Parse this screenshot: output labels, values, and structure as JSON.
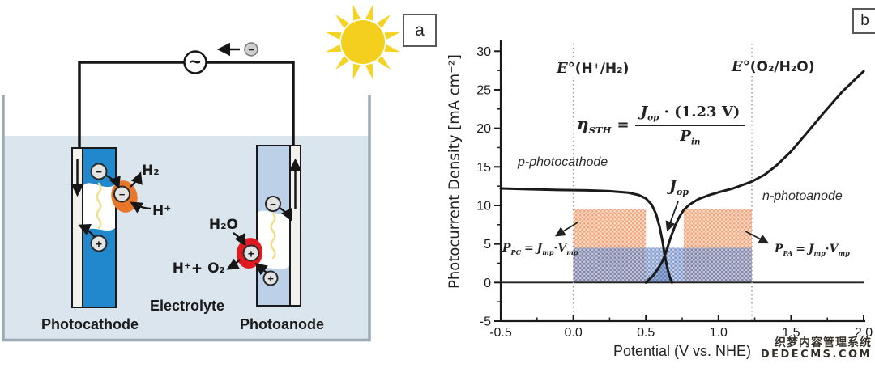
{
  "panel_a": {
    "tag": "a",
    "photocathode_label": "Photocathode",
    "photoanode_label": "Photoanode",
    "electrolyte_label": "Electrolyte",
    "h2": "H₂",
    "h_plus": "H⁺",
    "h2o": "H₂O",
    "h_plus_o2": "H⁺+ O₂",
    "ac_symbol": "~",
    "minus": "−",
    "plus": "+",
    "colors": {
      "electrolyte": "#dae5ee",
      "photocathode_blue": "#2189cb",
      "photoanode_blue": "#bcd0e8",
      "h2_catalyst_orange": "#e8772a",
      "o2_catalyst_red": "#e01a20",
      "sun_yellow": "#f5d322",
      "photon_yellow": "#efe08c"
    }
  },
  "panel_b": {
    "tag": "b",
    "equation": {
      "eta": "η",
      "eta_sub": "STH",
      "equals": "=",
      "j": "J",
      "j_sub": "op",
      "numerator_rest": " · (1.23 V)",
      "p": "P",
      "p_sub": "in"
    },
    "e0_left": {
      "symbol": "E°",
      "rest": "(H⁺/H₂)"
    },
    "e0_right": {
      "symbol": "E°",
      "rest": "(O₂/H₂O)"
    },
    "p_photocathode": "p-photocathode",
    "n_photoanode": "n-photoanode",
    "jop": {
      "j": "J",
      "sub": "op"
    },
    "ppc": {
      "p": "P",
      "p_sub": "PC",
      "equals": "=",
      "j": "J",
      "j_sub": "mp",
      "dot": "·",
      "v": "V",
      "v_sub": "mp"
    },
    "ppa": {
      "p": "P",
      "p_sub": "PA",
      "equals": "=",
      "j": "J",
      "j_sub": "mp",
      "dot": "·",
      "v": "V",
      "v_sub": "mp"
    },
    "chart_data": {
      "type": "line",
      "title": "",
      "xlabel": "Potential (V vs. NHE)",
      "ylabel": "Photocurrent Density [mA cm⁻²]",
      "xlim": [
        -0.5,
        2.0
      ],
      "ylim": [
        -5,
        31.5
      ],
      "x_ticks": [
        -0.5,
        0.0,
        0.5,
        1.0,
        1.5,
        2.0
      ],
      "x_tick_labels": [
        "-0.5",
        "0.0",
        "0.5",
        "1.0",
        "1.5",
        "2.0"
      ],
      "x_minor_ticks": [
        -0.25,
        0.25,
        0.75,
        1.25,
        1.75
      ],
      "y_ticks": [
        -5,
        0,
        5,
        10,
        15,
        20,
        25,
        30
      ],
      "y_tick_labels": [
        "-5",
        "0",
        "5",
        "10",
        "15",
        "20",
        "25",
        "30"
      ],
      "y_minor_ticks": [
        -2.5,
        2.5,
        7.5,
        12.5,
        17.5,
        22.5,
        27.5
      ],
      "grid": false,
      "reference_lines": [
        {
          "label": "E°(H⁺/H₂)",
          "x": 0.0
        },
        {
          "label": "E°(O₂/H₂O)",
          "x": 1.23
        }
      ],
      "series": [
        {
          "name": "p-photocathode",
          "x": [
            -0.5,
            -0.3,
            -0.1,
            0.1,
            0.25,
            0.38,
            0.45,
            0.5,
            0.54,
            0.57,
            0.595,
            0.615,
            0.63,
            0.65,
            0.665,
            0.68
          ],
          "y": [
            12.2,
            12.1,
            12.0,
            11.95,
            11.85,
            11.65,
            11.35,
            10.9,
            10.1,
            8.9,
            7.2,
            5.3,
            3.5,
            1.7,
            0.7,
            0
          ]
        },
        {
          "name": "n-photoanode",
          "x": [
            0.5,
            0.55,
            0.58,
            0.61,
            0.63,
            0.65,
            0.67,
            0.7,
            0.73,
            0.76,
            0.8,
            0.86,
            0.93,
            1.0,
            1.1,
            1.23,
            1.32,
            1.4,
            1.5,
            1.6,
            1.72,
            1.85,
            2.0
          ],
          "y": [
            0,
            0.9,
            1.7,
            2.6,
            3.5,
            4.6,
            5.8,
            7.3,
            8.5,
            9.4,
            10.1,
            10.8,
            11.3,
            11.7,
            12.2,
            13.1,
            14.0,
            15.2,
            17.0,
            19.2,
            21.9,
            24.7,
            27.4
          ]
        }
      ],
      "operating_point": {
        "label": "J_op",
        "x": 0.63,
        "y": 3.5
      },
      "operating_region": [
        [
          0.5,
          0
        ],
        [
          0.55,
          0.9
        ],
        [
          0.58,
          1.7
        ],
        [
          0.61,
          2.6
        ],
        [
          0.63,
          3.5
        ],
        [
          0.65,
          1.7
        ],
        [
          0.665,
          0.7
        ],
        [
          0.68,
          0
        ]
      ],
      "power_rectangles": [
        {
          "name": "P_PC",
          "x0": 0.0,
          "x1": 0.5,
          "j": 9.5,
          "color": "orange"
        },
        {
          "name": "P_PA",
          "x0": 0.76,
          "x1": 1.23,
          "j": 9.5,
          "color": "orange"
        },
        {
          "name": "overlap-band",
          "x0": 0.0,
          "x1": 1.23,
          "j": 4.5,
          "color": "blue"
        }
      ],
      "legend": false
    }
  },
  "watermark": {
    "line1": "织梦内容管理系统",
    "line2": "DEDECMS.COM"
  }
}
